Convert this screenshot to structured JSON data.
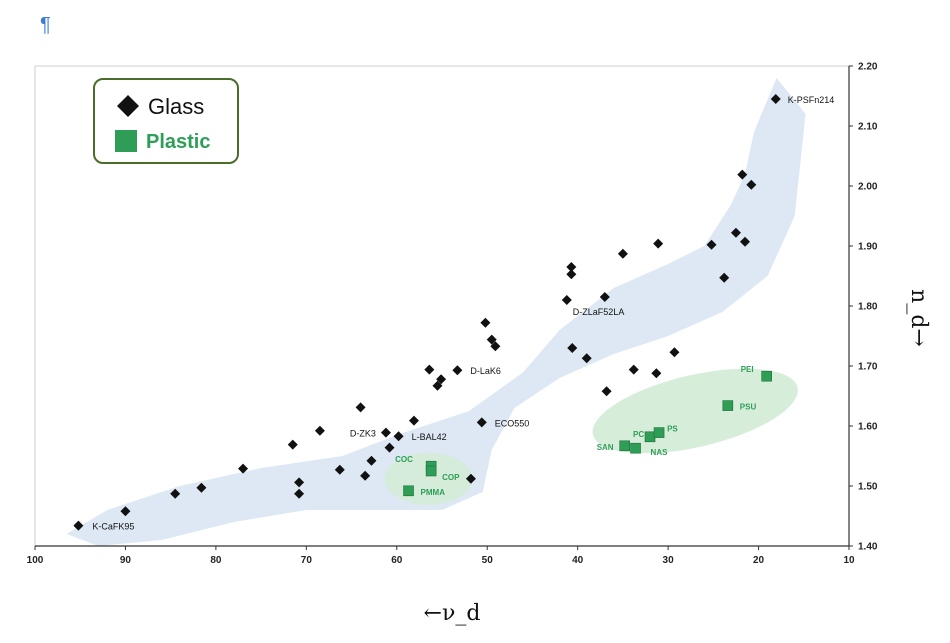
{
  "page": {
    "para_mark": "¶"
  },
  "chart_data": {
    "type": "scatter",
    "xlabel": "←ν_d",
    "ylabel": "n_d→",
    "xlim": [
      100,
      10
    ],
    "ylim": [
      1.4,
      2.2
    ],
    "x_ticks": [
      "100",
      "90",
      "80",
      "70",
      "60",
      "50",
      "40",
      "30",
      "20",
      "10"
    ],
    "y_ticks": [
      "1.40",
      "1.50",
      "1.60",
      "1.70",
      "1.80",
      "1.90",
      "2.00",
      "2.10",
      "2.20"
    ],
    "legend": {
      "placement": "top-left",
      "items": [
        "Glass",
        "Plastic"
      ]
    },
    "colors": {
      "glass": "#111111",
      "plastic": "#2e9e57",
      "glass_region": "#dbe7f3",
      "plastic_region": "#d4ecd8",
      "legend_border": "#4a6e2a",
      "plastic_label": "#2e9e57"
    },
    "series": [
      {
        "name": "Glass",
        "marker": "diamond",
        "points": [
          {
            "x": 95.2,
            "y": 1.434,
            "label": "K-CaFK95"
          },
          {
            "x": 90.0,
            "y": 1.458
          },
          {
            "x": 84.5,
            "y": 1.487
          },
          {
            "x": 81.6,
            "y": 1.497
          },
          {
            "x": 77.0,
            "y": 1.529
          },
          {
            "x": 71.5,
            "y": 1.569
          },
          {
            "x": 70.8,
            "y": 1.506
          },
          {
            "x": 70.8,
            "y": 1.487
          },
          {
            "x": 68.5,
            "y": 1.592
          },
          {
            "x": 66.3,
            "y": 1.527
          },
          {
            "x": 64.0,
            "y": 1.631
          },
          {
            "x": 63.5,
            "y": 1.517
          },
          {
            "x": 62.8,
            "y": 1.542
          },
          {
            "x": 61.2,
            "y": 1.589,
            "label": "D-ZK3"
          },
          {
            "x": 60.8,
            "y": 1.564
          },
          {
            "x": 59.8,
            "y": 1.583,
            "label": "L-BAL42"
          },
          {
            "x": 58.1,
            "y": 1.609
          },
          {
            "x": 56.4,
            "y": 1.694
          },
          {
            "x": 55.5,
            "y": 1.667
          },
          {
            "x": 55.1,
            "y": 1.678
          },
          {
            "x": 53.3,
            "y": 1.693,
            "label": "D-LaK6"
          },
          {
            "x": 51.8,
            "y": 1.512
          },
          {
            "x": 50.6,
            "y": 1.606,
            "label": "ECO550"
          },
          {
            "x": 50.2,
            "y": 1.772
          },
          {
            "x": 49.5,
            "y": 1.744
          },
          {
            "x": 49.1,
            "y": 1.733
          },
          {
            "x": 41.2,
            "y": 1.81
          },
          {
            "x": 40.7,
            "y": 1.865
          },
          {
            "x": 40.7,
            "y": 1.853
          },
          {
            "x": 40.6,
            "y": 1.73
          },
          {
            "x": 39.0,
            "y": 1.713
          },
          {
            "x": 37.0,
            "y": 1.815,
            "label": "D-ZLaF52LA"
          },
          {
            "x": 36.8,
            "y": 1.658
          },
          {
            "x": 35.0,
            "y": 1.887
          },
          {
            "x": 33.8,
            "y": 1.694
          },
          {
            "x": 31.3,
            "y": 1.688
          },
          {
            "x": 31.1,
            "y": 1.904
          },
          {
            "x": 29.3,
            "y": 1.723
          },
          {
            "x": 25.2,
            "y": 1.902
          },
          {
            "x": 23.8,
            "y": 1.847
          },
          {
            "x": 22.5,
            "y": 1.922
          },
          {
            "x": 21.8,
            "y": 2.019
          },
          {
            "x": 21.5,
            "y": 1.907
          },
          {
            "x": 20.8,
            "y": 2.002
          },
          {
            "x": 18.1,
            "y": 2.145,
            "label": "K-PSFn214"
          }
        ]
      },
      {
        "name": "Plastic",
        "marker": "square",
        "points": [
          {
            "x": 58.7,
            "y": 1.492,
            "label": "PMMA"
          },
          {
            "x": 56.2,
            "y": 1.533,
            "label": "COC"
          },
          {
            "x": 56.2,
            "y": 1.525,
            "label": "COP"
          },
          {
            "x": 34.8,
            "y": 1.567,
            "label": "SAN"
          },
          {
            "x": 33.6,
            "y": 1.563,
            "label": "NAS"
          },
          {
            "x": 32.0,
            "y": 1.582,
            "label": "PC"
          },
          {
            "x": 31.0,
            "y": 1.589,
            "label": "PS"
          },
          {
            "x": 23.4,
            "y": 1.634,
            "label": "PSU"
          },
          {
            "x": 19.1,
            "y": 1.683,
            "label": "PEI"
          }
        ]
      }
    ]
  }
}
